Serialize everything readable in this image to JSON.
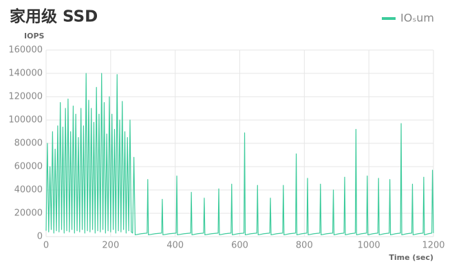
{
  "chart_data": {
    "type": "line",
    "title": "家用级 SSD",
    "y_label": "IOPS",
    "x_label": "Time (sec)",
    "x": [
      0,
      4,
      8,
      12,
      16,
      20,
      24,
      28,
      32,
      36,
      40,
      44,
      48,
      52,
      56,
      60,
      64,
      68,
      72,
      76,
      80,
      84,
      88,
      92,
      96,
      100,
      104,
      108,
      112,
      116,
      120,
      124,
      128,
      132,
      136,
      140,
      144,
      148,
      152,
      156,
      160,
      164,
      168,
      172,
      176,
      180,
      184,
      188,
      192,
      196,
      200,
      204,
      208,
      212,
      216,
      220,
      224,
      228,
      232,
      236,
      240,
      244,
      248,
      252,
      256,
      260,
      264,
      268,
      272,
      276,
      295,
      313,
      315,
      317,
      338,
      358,
      360,
      362,
      383,
      403,
      405,
      407,
      428,
      448,
      450,
      452,
      470,
      488,
      490,
      492,
      513,
      533,
      535,
      537,
      555,
      573,
      575,
      577,
      595,
      613,
      615,
      617,
      635,
      653,
      655,
      657,
      675,
      693,
      695,
      697,
      715,
      733,
      735,
      737,
      755,
      773,
      775,
      777,
      793,
      808,
      810,
      812,
      830,
      848,
      850,
      852,
      870,
      888,
      890,
      892,
      908,
      923,
      925,
      927,
      943,
      958,
      960,
      962,
      978,
      993,
      995,
      997,
      1013,
      1028,
      1030,
      1032,
      1048,
      1063,
      1065,
      1067,
      1083,
      1098,
      1100,
      1102,
      1118,
      1133,
      1135,
      1137,
      1153,
      1168,
      1170,
      1172,
      1185,
      1195,
      1197,
      1200
    ],
    "series": [
      {
        "name": "IOₛum",
        "color": "#3ccb9b",
        "values": [
          5000,
          80000,
          4000,
          60000,
          6000,
          90000,
          3000,
          75000,
          5000,
          95000,
          4000,
          115000,
          6000,
          94000,
          3000,
          110000,
          5000,
          118000,
          4000,
          90000,
          6000,
          112000,
          3000,
          105000,
          5000,
          85000,
          4000,
          110000,
          6000,
          95000,
          3000,
          140000,
          5000,
          117000,
          4000,
          110000,
          6000,
          98000,
          3000,
          128000,
          5000,
          105000,
          4000,
          140000,
          6000,
          115000,
          3000,
          88000,
          5000,
          120000,
          4000,
          105000,
          6000,
          92000,
          3000,
          139000,
          5000,
          100000,
          4000,
          116000,
          6000,
          90000,
          3000,
          85000,
          5000,
          100000,
          4000,
          3000,
          68000,
          1500,
          2500,
          3000,
          49000,
          1500,
          2500,
          3000,
          32000,
          1500,
          2500,
          3000,
          52000,
          1500,
          2500,
          3000,
          38000,
          1500,
          2500,
          3000,
          33000,
          1500,
          2500,
          3000,
          41000,
          1500,
          2500,
          3000,
          45000,
          1500,
          2500,
          3000,
          89000,
          1500,
          2500,
          3000,
          44000,
          1500,
          2500,
          3000,
          33000,
          1500,
          2500,
          3000,
          44000,
          1500,
          2500,
          3000,
          71000,
          1500,
          2500,
          3000,
          50000,
          1500,
          2500,
          3000,
          45000,
          1500,
          2500,
          3000,
          40000,
          1500,
          2500,
          3000,
          51000,
          1500,
          2500,
          3000,
          92000,
          1500,
          2500,
          3000,
          52000,
          1500,
          2500,
          3000,
          50000,
          1500,
          2500,
          3000,
          49000,
          1500,
          2500,
          3000,
          97000,
          1500,
          2500,
          3000,
          45000,
          1500,
          2500,
          3000,
          51000,
          1500,
          2500,
          3000,
          57000,
          3000
        ]
      }
    ],
    "xlim": [
      0,
      1200
    ],
    "xticks": [
      0,
      200,
      400,
      600,
      800,
      1000,
      1200
    ],
    "ylim": [
      0,
      160000
    ],
    "yticks": [
      0,
      20000,
      40000,
      60000,
      80000,
      100000,
      120000,
      140000,
      160000
    ],
    "grid": true,
    "legend": "top-right"
  }
}
